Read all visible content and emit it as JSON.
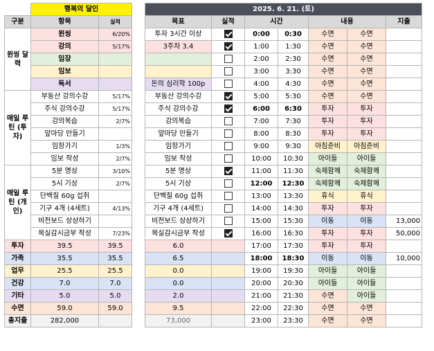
{
  "left": {
    "title": "행복의 달인",
    "headers": [
      "구분",
      "항목",
      "실적"
    ],
    "groups": {
      "wonssing": "윈씽 달력",
      "routine_invest": "매일 루틴 (투자)",
      "routine_personal": "매일 루틴 (개인)"
    },
    "items": [
      {
        "name": "윈씽",
        "result": "6/20%"
      },
      {
        "name": "강의",
        "result": "5/17%"
      },
      {
        "name": "임장",
        "result": ""
      },
      {
        "name": "임보",
        "result": ""
      },
      {
        "name": "독서",
        "result": ""
      },
      {
        "name": "부동산 강의수강",
        "result": "5/17%"
      },
      {
        "name": "주식 강의수강",
        "result": "5/17%"
      },
      {
        "name": "강의복습",
        "result": "2/7%"
      },
      {
        "name": "앞마당 만들기",
        "result": ""
      },
      {
        "name": "임장가기",
        "result": "1/3%"
      },
      {
        "name": "임보 작성",
        "result": "2/7%"
      },
      {
        "name": "5분 명상",
        "result": "3/10%"
      },
      {
        "name": "5시 기상",
        "result": "2/7%"
      },
      {
        "name": "단백질 60g 섭취",
        "result": ""
      },
      {
        "name": "기구 4개 (4세트)",
        "result": "4/13%"
      },
      {
        "name": "비전보드 상상하기",
        "result": ""
      },
      {
        "name": "목실감시금부 작성",
        "result": "7/23%"
      }
    ],
    "summary": [
      {
        "label": "투자",
        "value": "39.5",
        "result": "39.5"
      },
      {
        "label": "가족",
        "value": "35.5",
        "result": "35.5"
      },
      {
        "label": "업무",
        "value": "25.5",
        "result": "25.5"
      },
      {
        "label": "건강",
        "value": "7.0",
        "result": "7.0"
      },
      {
        "label": "기타",
        "value": "5.0",
        "result": "5.0"
      },
      {
        "label": "수면",
        "value": "59.0",
        "result": "59.0"
      }
    ],
    "total_label": "총지출",
    "total_value": "282,000"
  },
  "right": {
    "date": "2025. 6. 21. (토)",
    "headers": [
      "목표",
      "실적",
      "시간",
      "내용",
      "지출"
    ],
    "rows": [
      {
        "goal": "투자 3시간 이상",
        "done": true,
        "t1": "0:00",
        "t2": "0:30",
        "a": "수면",
        "b": "수면",
        "spend": ""
      },
      {
        "goal": "3주차 3.4",
        "done": true,
        "t1": "1:00",
        "t2": "1:30",
        "a": "수면",
        "b": "수면",
        "spend": ""
      },
      {
        "goal": "",
        "done": false,
        "t1": "2:00",
        "t2": "2:30",
        "a": "수면",
        "b": "수면",
        "spend": ""
      },
      {
        "goal": "",
        "done": false,
        "t1": "3:00",
        "t2": "3:30",
        "a": "수면",
        "b": "수면",
        "spend": ""
      },
      {
        "goal": "돈의 심리학 100p",
        "done": false,
        "t1": "4:00",
        "t2": "4:30",
        "a": "수면",
        "b": "수면",
        "spend": ""
      },
      {
        "goal": "부동산 강의수강",
        "done": true,
        "t1": "5:00",
        "t2": "5:30",
        "a": "수면",
        "b": "수면",
        "spend": ""
      },
      {
        "goal": "주식 강의수강",
        "done": true,
        "t1": "6:00",
        "t2": "6:30",
        "a": "투자",
        "b": "투자",
        "spend": ""
      },
      {
        "goal": "강의복습",
        "done": false,
        "t1": "7:00",
        "t2": "7:30",
        "a": "투자",
        "b": "투자",
        "spend": ""
      },
      {
        "goal": "앞마당 만들기",
        "done": false,
        "t1": "8:00",
        "t2": "8:30",
        "a": "투자",
        "b": "투자",
        "spend": ""
      },
      {
        "goal": "임장가기",
        "done": false,
        "t1": "9:00",
        "t2": "9:30",
        "a": "아침준비",
        "b": "아침준비",
        "spend": ""
      },
      {
        "goal": "임보 작성",
        "done": false,
        "t1": "10:00",
        "t2": "10:30",
        "a": "아이들",
        "b": "아이들",
        "spend": ""
      },
      {
        "goal": "5분 명상",
        "done": true,
        "t1": "11:00",
        "t2": "11:30",
        "a": "숙제함께",
        "b": "숙제함께",
        "spend": ""
      },
      {
        "goal": "5시 기상",
        "done": false,
        "t1": "12:00",
        "t2": "12:30",
        "a": "숙제함께",
        "b": "숙제함께",
        "spend": ""
      },
      {
        "goal": "단백질 60g 섭취",
        "done": false,
        "t1": "13:00",
        "t2": "13:30",
        "a": "휴식",
        "b": "휴식",
        "spend": ""
      },
      {
        "goal": "기구 4개 (4세트)",
        "done": false,
        "t1": "14:00",
        "t2": "14:30",
        "a": "투자",
        "b": "투자",
        "spend": ""
      },
      {
        "goal": "비전보드 상상하기",
        "done": false,
        "t1": "15:00",
        "t2": "15:30",
        "a": "이동",
        "b": "이동",
        "spend": "13,000"
      },
      {
        "goal": "목실감시금부 작성",
        "done": true,
        "t1": "16:00",
        "t2": "16:30",
        "a": "투자",
        "b": "투자",
        "spend": "50,000"
      },
      {
        "goal": "6.0",
        "done": null,
        "t1": "17:00",
        "t2": "17:30",
        "a": "투자",
        "b": "투자",
        "spend": ""
      },
      {
        "goal": "6.5",
        "done": null,
        "t1": "18:00",
        "t2": "18:30",
        "a": "이동",
        "b": "이동",
        "spend": "10,000"
      },
      {
        "goal": "0.0",
        "done": null,
        "t1": "19:00",
        "t2": "19:30",
        "a": "아이들",
        "b": "아이들",
        "spend": ""
      },
      {
        "goal": "0.0",
        "done": null,
        "t1": "20:00",
        "t2": "20:30",
        "a": "아이들",
        "b": "아이들",
        "spend": ""
      },
      {
        "goal": "2.0",
        "done": null,
        "t1": "21:00",
        "t2": "21:30",
        "a": "수면",
        "b": "아이들",
        "spend": ""
      },
      {
        "goal": "9.5",
        "done": null,
        "t1": "22:00",
        "t2": "22:30",
        "a": "수면",
        "b": "수면",
        "spend": ""
      },
      {
        "goal": "73,000",
        "done": null,
        "t1": "23:00",
        "t2": "23:30",
        "a": "수면",
        "b": "수면",
        "spend": ""
      }
    ],
    "bold_time_rows": [
      0,
      6,
      12,
      18
    ]
  },
  "colors": {
    "수면": "#fce4d6",
    "투자": "#fde0e0",
    "아침준비": "#fff2cc",
    "아이들": "#e2efda",
    "숙제함께": "#e2efda",
    "휴식": "#fff2cc",
    "이동": "#d9e3f5"
  }
}
